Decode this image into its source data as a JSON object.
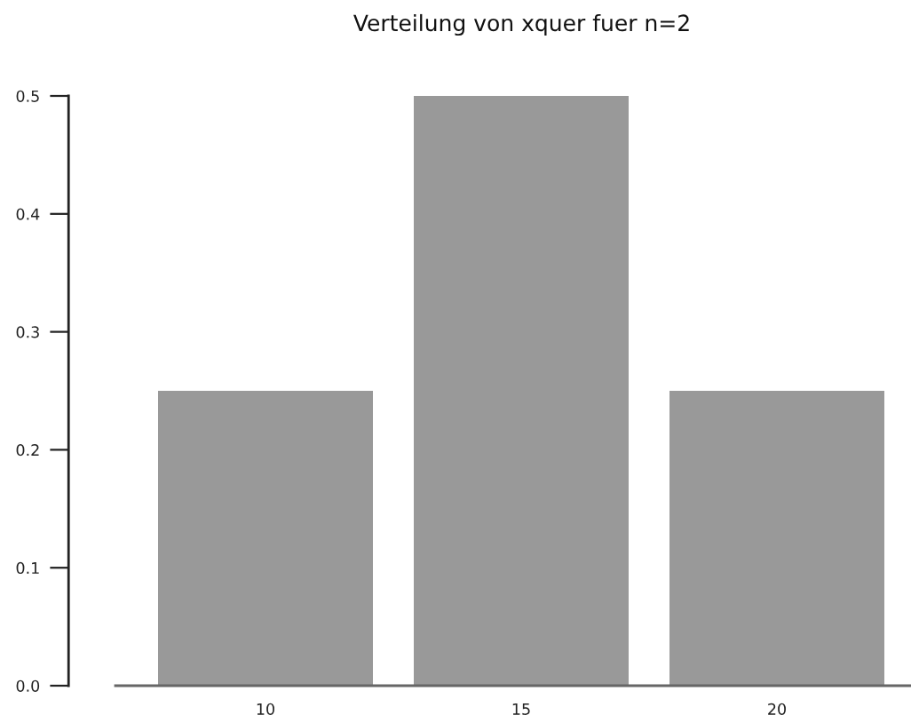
{
  "chart_data": {
    "type": "bar",
    "title": "Verteilung von xquer fuer n=2",
    "categories": [
      "10",
      "15",
      "20"
    ],
    "values": [
      0.25,
      0.5,
      0.25
    ],
    "color": "#999999",
    "ylim": [
      0,
      0.5
    ],
    "yticks": [
      {
        "value": 0,
        "label": "0.0"
      },
      0.1,
      0.2,
      0.3,
      0.4,
      0.5
    ]
  }
}
